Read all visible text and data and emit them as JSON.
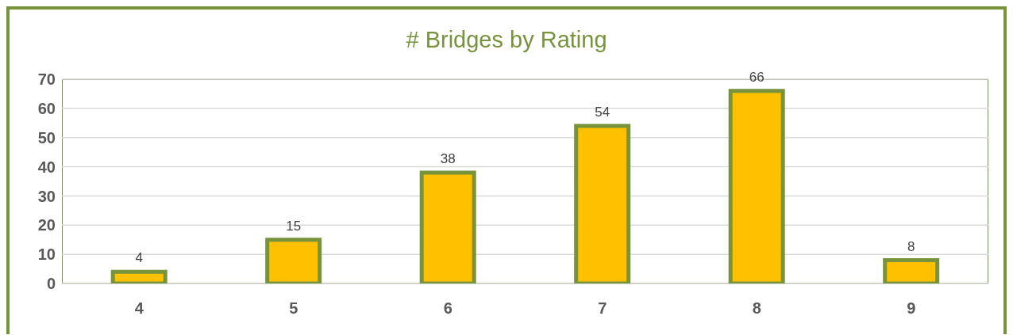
{
  "chart_data": {
    "type": "bar",
    "title": "# Bridges by Rating",
    "categories": [
      "4",
      "5",
      "6",
      "7",
      "8",
      "9"
    ],
    "values": [
      4,
      15,
      38,
      54,
      66,
      8
    ],
    "color": "#ffc000",
    "ylim": [
      0,
      70
    ],
    "yticks": [
      0,
      10,
      20,
      30,
      40,
      50,
      60,
      70
    ],
    "grid": "y",
    "data_labels": true
  }
}
